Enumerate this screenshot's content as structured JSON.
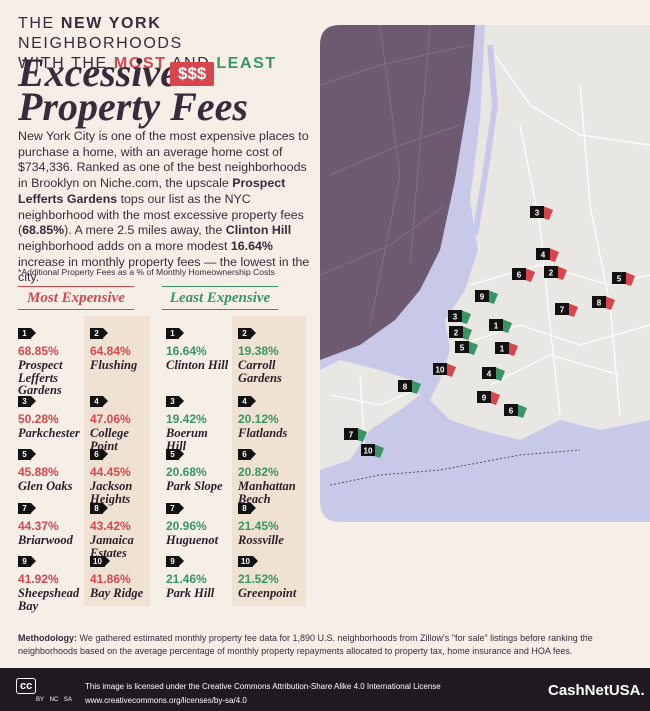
{
  "header": {
    "line1": [
      "THE ",
      "NEW YORK",
      " NEIGHBORHOODS"
    ],
    "line2": [
      "WITH THE ",
      "MOST",
      " AND ",
      "LEAST"
    ],
    "headline1": "Excessive",
    "tag": "$$$",
    "headline2": "Property Fees"
  },
  "intro": [
    "New York City is one of the most expensive places to purchase a home, with an average home cost of $734,336. Ranked as one of the best neighborhoods in Brooklyn on Niche.com, the upscale ",
    "Prospect Lefferts Gardens",
    " tops our list as the NYC neighborhood with the most excessive property fees (",
    "68.85%",
    "). A mere 2.5 miles away, the ",
    "Clinton Hill",
    " neighborhood adds on a more modest ",
    "16.64%",
    " increase in monthly property fees — the lowest in the city."
  ],
  "footnote": "*Additional Property Fees as a % of Monthly Homeownership Costs",
  "most_expensive": {
    "heading": "Most Expensive",
    "items": [
      {
        "rank": "1",
        "percent": "68.85%",
        "name": "Prospect Lefferts Gardens"
      },
      {
        "rank": "2",
        "percent": "64.84%",
        "name": "Flushing"
      },
      {
        "rank": "3",
        "percent": "50.28%",
        "name": "Parkchester"
      },
      {
        "rank": "4",
        "percent": "47.06%",
        "name": "College Point"
      },
      {
        "rank": "5",
        "percent": "45.88%",
        "name": "Glen Oaks"
      },
      {
        "rank": "6",
        "percent": "44.45%",
        "name": "Jackson Heights"
      },
      {
        "rank": "7",
        "percent": "44.37%",
        "name": "Briarwood"
      },
      {
        "rank": "8",
        "percent": "43.42%",
        "name": "Jamaica Estates"
      },
      {
        "rank": "9",
        "percent": "41.92%",
        "name": "Sheepshead Bay"
      },
      {
        "rank": "10",
        "percent": "41.86%",
        "name": "Bay Ridge"
      }
    ]
  },
  "least_expensive": {
    "heading": "Least Expensive",
    "items": [
      {
        "rank": "1",
        "percent": "16.64%",
        "name": "Clinton Hill"
      },
      {
        "rank": "2",
        "percent": "19.38%",
        "name": "Carroll Gardens"
      },
      {
        "rank": "3",
        "percent": "19.42%",
        "name": "Boerum Hill"
      },
      {
        "rank": "4",
        "percent": "20.12%",
        "name": "Flatlands"
      },
      {
        "rank": "5",
        "percent": "20.68%",
        "name": "Park Slope"
      },
      {
        "rank": "6",
        "percent": "20.82%",
        "name": "Manhattan Beach"
      },
      {
        "rank": "7",
        "percent": "20.96%",
        "name": "Huguenot"
      },
      {
        "rank": "8",
        "percent": "21.45%",
        "name": "Rossville"
      },
      {
        "rank": "9",
        "percent": "21.46%",
        "name": "Park Hill"
      },
      {
        "rank": "10",
        "percent": "21.52%",
        "name": "Greenpoint"
      }
    ]
  },
  "map": {
    "markers": [
      "3",
      "4",
      "2",
      "6",
      "5",
      "7",
      "8",
      "1",
      "10",
      "9",
      "9",
      "3",
      "2",
      "1",
      "5",
      "4",
      "6",
      "8",
      "7",
      "10"
    ]
  },
  "methodology": {
    "label": "Methodology:",
    "text": " We gathered estimated monthly property fee data for 1,890 U.S. neighborhoods from Zillow's \"for sale\" listings before ranking the neighborhoods based on the average percentage of monthly property repayments allocated to property tax, home insurance and HOA fees."
  },
  "footer": {
    "cc": "cc",
    "cc_parts": [
      "BY",
      "NC",
      "SA"
    ],
    "license": "This image is licensed under the Creative Commons Attribution-Share Alike 4.0 International License",
    "url": "www.creativecommons.org/licenses/by-sa/4.0",
    "brand": "CashNetUSA."
  }
}
